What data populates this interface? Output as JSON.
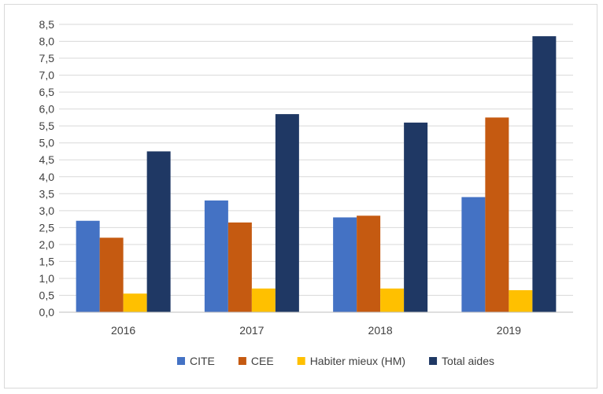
{
  "chart_data": {
    "type": "bar",
    "title": "",
    "xlabel": "",
    "ylabel": "",
    "categories": [
      "2016",
      "2017",
      "2018",
      "2019"
    ],
    "series": [
      {
        "name": "CITE",
        "color": "#4472C4",
        "values": [
          2.7,
          3.3,
          2.8,
          3.4
        ]
      },
      {
        "name": "CEE",
        "color": "#C55A11",
        "values": [
          2.2,
          2.65,
          2.85,
          5.75
        ]
      },
      {
        "name": "Habiter mieux (HM)",
        "color": "#FFC000",
        "values": [
          0.55,
          0.7,
          0.7,
          0.65
        ]
      },
      {
        "name": "Total aides",
        "color": "#1F3864",
        "values": [
          4.75,
          5.85,
          5.6,
          8.15
        ]
      }
    ],
    "ylim": [
      0,
      8.5
    ],
    "ystep": 0.5,
    "ytick_labels": [
      "0,0",
      "0,5",
      "1,0",
      "1,5",
      "2,0",
      "2,5",
      "3,0",
      "3,5",
      "4,0",
      "4,5",
      "5,0",
      "5,5",
      "6,0",
      "6,5",
      "7,0",
      "7,5",
      "8,0",
      "8,5"
    ],
    "grid": true,
    "legend_position": "bottom"
  }
}
